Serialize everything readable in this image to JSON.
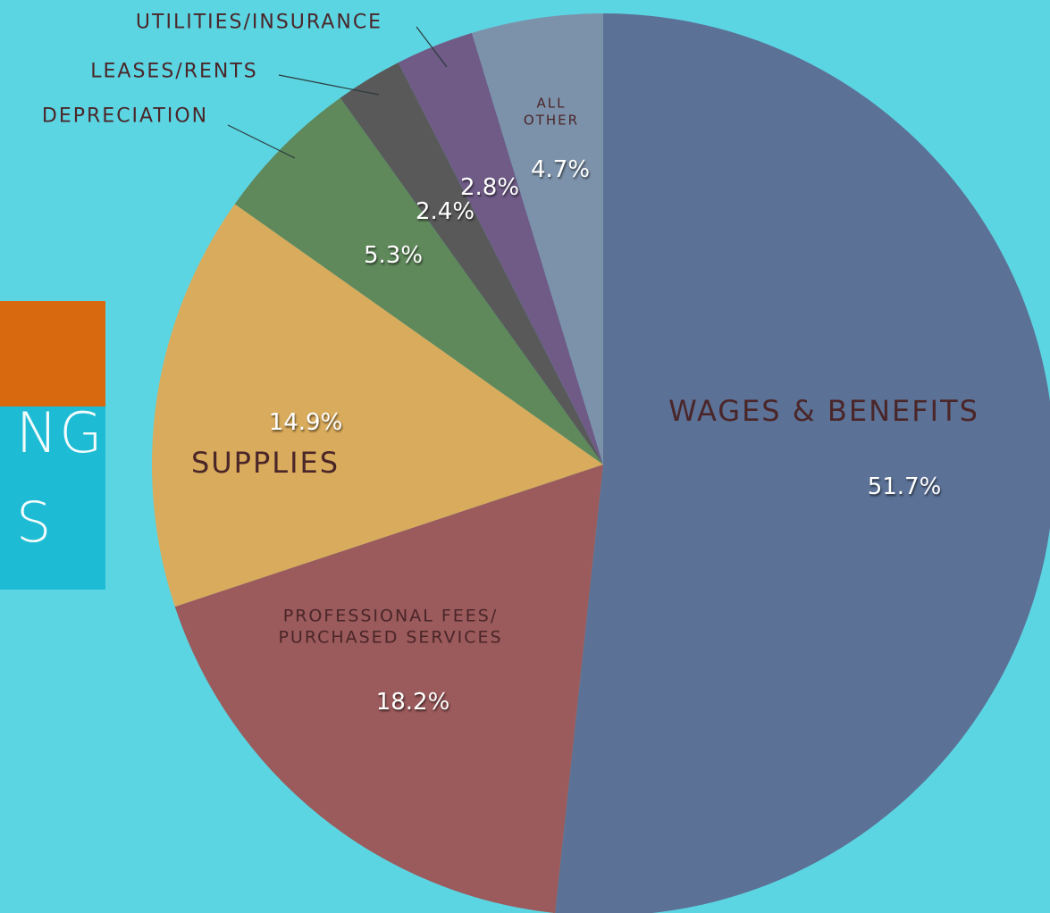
{
  "slide_title": [
    "NG",
    "S"
  ],
  "chart_data": {
    "type": "pie",
    "categories": [
      "WAGES & BENEFITS",
      "PROFESSIONAL FEES/ PURCHASED SERVICES",
      "SUPPLIES",
      "DEPRECIATION",
      "LEASES/RENTS",
      "UTILITIES/INSURANCE",
      "ALL OTHER"
    ],
    "values": [
      51.7,
      18.2,
      14.9,
      5.3,
      2.4,
      2.8,
      4.7
    ],
    "value_labels": [
      "51.7%",
      "18.2%",
      "14.9%",
      "5.3%",
      "2.4%",
      "2.8%",
      "4.7%"
    ],
    "colors": [
      "#5b7196",
      "#9b5a5b",
      "#d9ab5c",
      "#5f885b",
      "#595959",
      "#6f5b86",
      "#7c92aa"
    ]
  }
}
